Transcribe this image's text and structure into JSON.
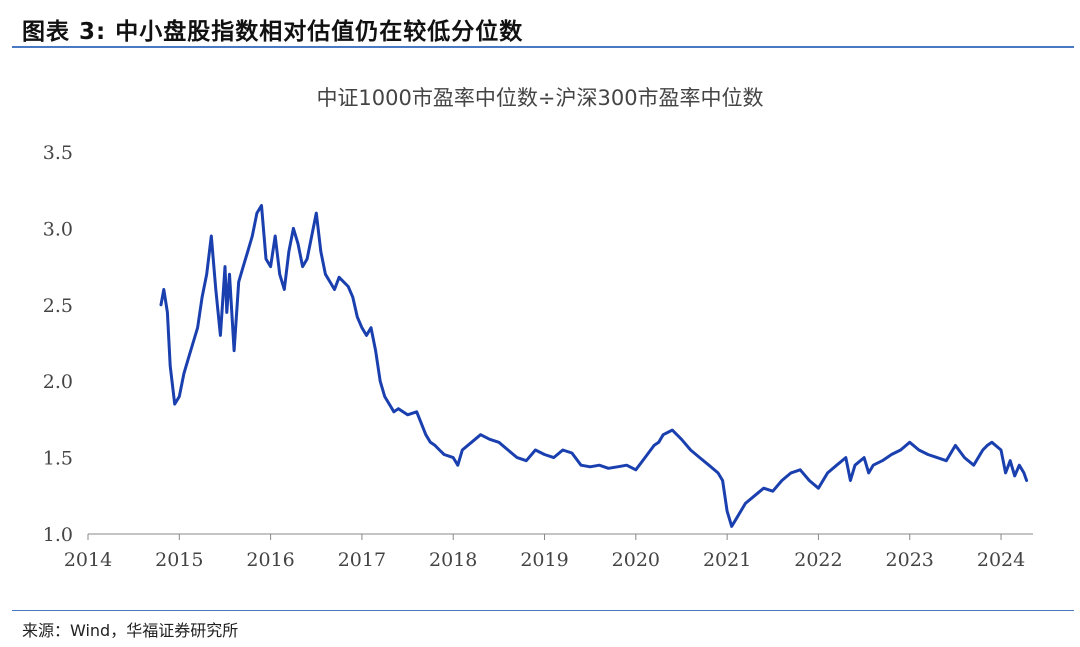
{
  "figure": {
    "title": "图表 3:  中小盘股指数相对估值仍在较低分位数",
    "source": "来源：Wind，华福证券研究所"
  },
  "colors": {
    "line": "#1a3fae",
    "rule": "#4a79c4",
    "axis": "#888888"
  },
  "chart_data": {
    "type": "line",
    "title": "中证1000市盈率中位数÷沪深300市盈率中位数",
    "xlabel": "",
    "ylabel": "",
    "xlim": [
      2014.0,
      2024.35
    ],
    "ylim": [
      1.0,
      3.5
    ],
    "x_ticks": [
      "2014",
      "2015",
      "2016",
      "2017",
      "2018",
      "2019",
      "2020",
      "2021",
      "2022",
      "2023",
      "2024"
    ],
    "y_ticks": [
      "1.0",
      "1.5",
      "2.0",
      "2.5",
      "3.0",
      "3.5"
    ],
    "grid": false,
    "legend": "none",
    "series": [
      {
        "name": "",
        "x": [
          2014.8,
          2014.83,
          2014.87,
          2014.9,
          2014.95,
          2015.0,
          2015.05,
          2015.1,
          2015.15,
          2015.2,
          2015.25,
          2015.3,
          2015.35,
          2015.4,
          2015.45,
          2015.5,
          2015.52,
          2015.55,
          2015.6,
          2015.65,
          2015.7,
          2015.75,
          2015.8,
          2015.85,
          2015.9,
          2015.95,
          2016.0,
          2016.05,
          2016.1,
          2016.15,
          2016.2,
          2016.25,
          2016.3,
          2016.35,
          2016.4,
          2016.45,
          2016.5,
          2016.55,
          2016.6,
          2016.65,
          2016.7,
          2016.75,
          2016.8,
          2016.85,
          2016.9,
          2016.95,
          2017.0,
          2017.05,
          2017.1,
          2017.15,
          2017.2,
          2017.25,
          2017.3,
          2017.35,
          2017.4,
          2017.5,
          2017.6,
          2017.7,
          2017.75,
          2017.8,
          2017.85,
          2017.9,
          2018.0,
          2018.05,
          2018.1,
          2018.2,
          2018.3,
          2018.4,
          2018.5,
          2018.6,
          2018.7,
          2018.8,
          2018.9,
          2019.0,
          2019.1,
          2019.2,
          2019.3,
          2019.4,
          2019.5,
          2019.6,
          2019.7,
          2019.8,
          2019.9,
          2020.0,
          2020.1,
          2020.2,
          2020.25,
          2020.3,
          2020.4,
          2020.5,
          2020.6,
          2020.7,
          2020.8,
          2020.9,
          2020.95,
          2021.0,
          2021.05,
          2021.1,
          2021.2,
          2021.3,
          2021.4,
          2021.5,
          2021.6,
          2021.7,
          2021.8,
          2021.9,
          2022.0,
          2022.1,
          2022.2,
          2022.3,
          2022.35,
          2022.4,
          2022.5,
          2022.55,
          2022.6,
          2022.7,
          2022.8,
          2022.9,
          2023.0,
          2023.1,
          2023.2,
          2023.3,
          2023.4,
          2023.5,
          2023.6,
          2023.7,
          2023.8,
          2023.85,
          2023.9,
          2024.0,
          2024.05,
          2024.1,
          2024.15,
          2024.2,
          2024.25,
          2024.28
        ],
        "values": [
          2.5,
          2.6,
          2.45,
          2.1,
          1.85,
          1.9,
          2.05,
          2.15,
          2.25,
          2.35,
          2.55,
          2.7,
          2.95,
          2.6,
          2.3,
          2.75,
          2.45,
          2.7,
          2.2,
          2.65,
          2.75,
          2.85,
          2.95,
          3.1,
          3.15,
          2.8,
          2.75,
          2.95,
          2.7,
          2.6,
          2.85,
          3.0,
          2.9,
          2.75,
          2.8,
          2.95,
          3.1,
          2.85,
          2.7,
          2.65,
          2.6,
          2.68,
          2.65,
          2.62,
          2.55,
          2.42,
          2.35,
          2.3,
          2.35,
          2.2,
          2.0,
          1.9,
          1.85,
          1.8,
          1.82,
          1.78,
          1.8,
          1.65,
          1.6,
          1.58,
          1.55,
          1.52,
          1.5,
          1.45,
          1.55,
          1.6,
          1.65,
          1.62,
          1.6,
          1.55,
          1.5,
          1.48,
          1.55,
          1.52,
          1.5,
          1.55,
          1.53,
          1.45,
          1.44,
          1.45,
          1.43,
          1.44,
          1.45,
          1.42,
          1.5,
          1.58,
          1.6,
          1.65,
          1.68,
          1.62,
          1.55,
          1.5,
          1.45,
          1.4,
          1.35,
          1.15,
          1.05,
          1.1,
          1.2,
          1.25,
          1.3,
          1.28,
          1.35,
          1.4,
          1.42,
          1.35,
          1.3,
          1.4,
          1.45,
          1.5,
          1.35,
          1.45,
          1.5,
          1.4,
          1.45,
          1.48,
          1.52,
          1.55,
          1.6,
          1.55,
          1.52,
          1.5,
          1.48,
          1.58,
          1.5,
          1.45,
          1.55,
          1.58,
          1.6,
          1.55,
          1.4,
          1.48,
          1.38,
          1.45,
          1.4,
          1.35
        ]
      }
    ]
  }
}
